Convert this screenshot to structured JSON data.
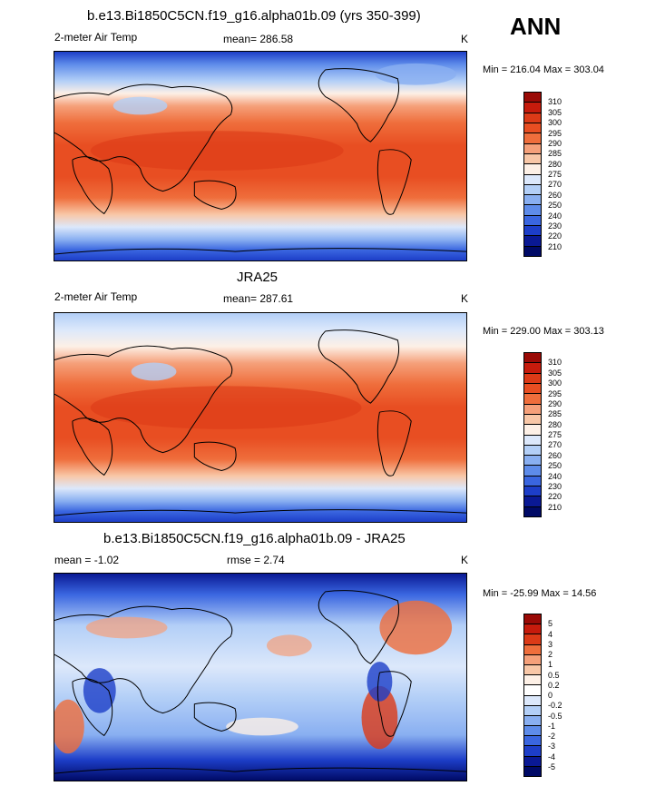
{
  "season": "ANN",
  "panels": [
    {
      "title": "b.e13.Bi1850C5CN.f19_g16.alpha01b.09 (yrs 350-399)",
      "left_label": "2-meter Air Temp",
      "center_label": "mean= 286.58",
      "units": "K",
      "minmax": "Min = 216.04 Max = 303.04",
      "colorbar_labels": [
        "310",
        "305",
        "300",
        "295",
        "290",
        "285",
        "280",
        "275",
        "270",
        "260",
        "250",
        "240",
        "230",
        "220",
        "210"
      ]
    },
    {
      "title": "JRA25",
      "left_label": "2-meter Air Temp",
      "center_label": "mean= 287.61",
      "units": "K",
      "minmax": "Min = 229.00 Max = 303.13",
      "colorbar_labels": [
        "310",
        "305",
        "300",
        "295",
        "290",
        "285",
        "280",
        "275",
        "270",
        "260",
        "250",
        "240",
        "230",
        "220",
        "210"
      ]
    },
    {
      "title": "b.e13.Bi1850C5CN.f19_g16.alpha01b.09 - JRA25",
      "left_label": "mean =  -1.02",
      "center_label": "rmse =   2.74",
      "units": "K",
      "minmax": "Min = -25.99 Max =  14.56",
      "colorbar_labels": [
        "5",
        "4",
        "3",
        "2",
        "1",
        "0.5",
        "0.2",
        "0",
        "-0.2",
        "-0.5",
        "-1",
        "-2",
        "-3",
        "-4",
        "-5"
      ]
    }
  ],
  "colors": {
    "temp_scale": [
      "#9a0a06",
      "#c61b0c",
      "#dc3a17",
      "#e84e22",
      "#ef6e3c",
      "#f5a07a",
      "#f8c7a7",
      "#fdf0e6",
      "#dce8fb",
      "#b3cff7",
      "#89aff1",
      "#5e8cea",
      "#3a66e0",
      "#1d3ec8",
      "#0a1994",
      "#000a66"
    ],
    "diff_scale": [
      "#9a0a06",
      "#c61b0c",
      "#dc3a17",
      "#ef6e3c",
      "#f5a07a",
      "#f8c7a7",
      "#fdf0e6",
      "#ffffff",
      "#dce8fb",
      "#b3cff7",
      "#89aff1",
      "#5e8cea",
      "#3a66e0",
      "#1d3ec8",
      "#0a1994",
      "#000a66"
    ]
  }
}
